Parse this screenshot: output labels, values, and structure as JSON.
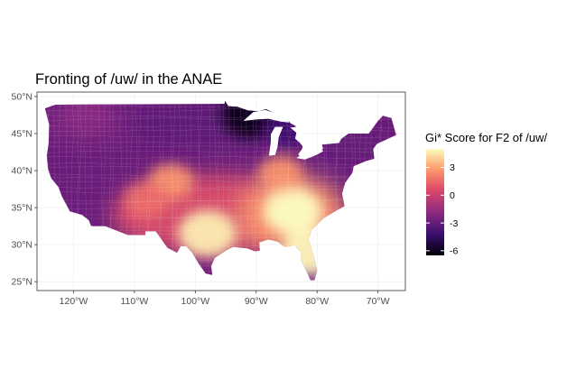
{
  "title": "Fronting of /uw/ in the ANAE",
  "legend": {
    "title": "Gi* Score for F2 of /uw/",
    "breaks": [
      {
        "value": 3,
        "label": "3"
      },
      {
        "value": 0,
        "label": "0"
      },
      {
        "value": -3,
        "label": "-3"
      },
      {
        "value": -6,
        "label": "-6"
      }
    ],
    "range": [
      -6.5,
      5
    ]
  },
  "axes": {
    "lon_ticks": [
      {
        "value": -120,
        "label": "120°W"
      },
      {
        "value": -110,
        "label": "110°W"
      },
      {
        "value": -100,
        "label": "100°W"
      },
      {
        "value": -90,
        "label": "90°W"
      },
      {
        "value": -80,
        "label": "80°W"
      },
      {
        "value": -70,
        "label": "70°W"
      }
    ],
    "lat_ticks": [
      {
        "value": 25,
        "label": "25°N"
      },
      {
        "value": 30,
        "label": "30°N"
      },
      {
        "value": 35,
        "label": "35°N"
      },
      {
        "value": 40,
        "label": "40°N"
      },
      {
        "value": 45,
        "label": "45°N"
      },
      {
        "value": 50,
        "label": "50°N"
      }
    ],
    "lon_range": [
      -126,
      -65.5
    ],
    "lat_range": [
      23.8,
      50.6
    ]
  },
  "colors": {
    "scale": [
      "#000004",
      "#3b0f70",
      "#8c2981",
      "#de4968",
      "#fe9f6d",
      "#fcfdbf"
    ],
    "panel_border": "#333333",
    "grid": "#ebebeb"
  },
  "map_data": {
    "type": "choropleth",
    "region": "contiguous United States (counties)",
    "variable": "Gi* Score for F2 of /uw/",
    "hotspots": [
      {
        "lon": -84,
        "lat": 34.5,
        "score": 5
      },
      {
        "lon": -98,
        "lat": 31.5,
        "score": 4.6
      },
      {
        "lon": -81.2,
        "lat": 29,
        "score": 4.8
      },
      {
        "lon": -104,
        "lat": 38.5,
        "score": 2.5
      },
      {
        "lon": -86,
        "lat": 39.5,
        "score": 2.5
      },
      {
        "lon": -108,
        "lat": 36,
        "score": 1.5
      }
    ],
    "coldspots": [
      {
        "lon": -91,
        "lat": 47.5,
        "score": -6
      },
      {
        "lon": -85,
        "lat": 45.5,
        "score": -4
      },
      {
        "lon": -74,
        "lat": 43.5,
        "score": -3
      },
      {
        "lon": -118,
        "lat": 47.5,
        "score": -2
      }
    ]
  }
}
